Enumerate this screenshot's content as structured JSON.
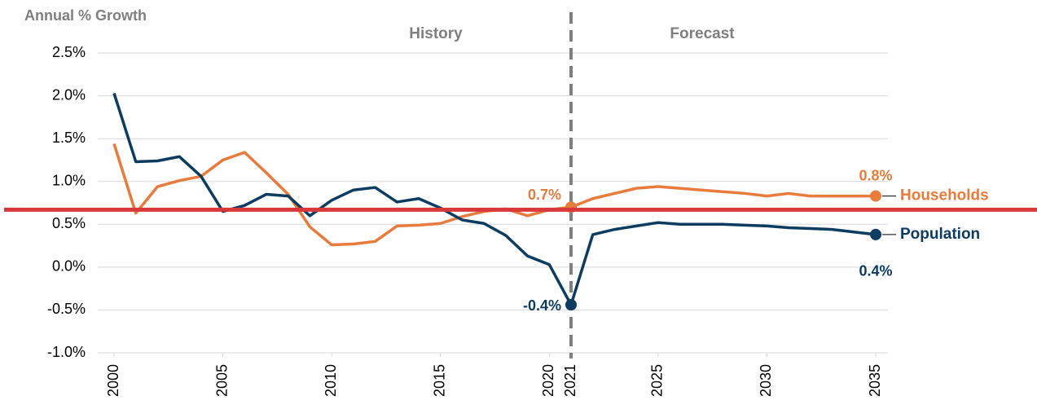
{
  "chart_data": {
    "type": "line",
    "ylabel": "Annual % Growth",
    "annotations": [
      "History",
      "Forecast"
    ],
    "x": [
      2000,
      2001,
      2002,
      2003,
      2004,
      2005,
      2006,
      2007,
      2008,
      2009,
      2010,
      2011,
      2012,
      2013,
      2014,
      2015,
      2016,
      2017,
      2018,
      2019,
      2020,
      2021,
      2022,
      2023,
      2024,
      2025,
      2026,
      2027,
      2028,
      2029,
      2030,
      2031,
      2032,
      2033,
      2034,
      2035
    ],
    "xlim": [
      2000,
      2035
    ],
    "xticks": [
      2000,
      2005,
      2010,
      2015,
      2020,
      2021,
      2025,
      2030,
      2035
    ],
    "ylim": [
      -1.0,
      2.5
    ],
    "yticks": [
      {
        "value": -1.0,
        "label": "-1.0%"
      },
      {
        "value": -0.5,
        "label": "-0.5%"
      },
      {
        "value": 0.0,
        "label": "0.0%"
      },
      {
        "value": 0.5,
        "label": "0.5%"
      },
      {
        "value": 1.0,
        "label": "1.0%"
      },
      {
        "value": 1.5,
        "label": "1.5%"
      },
      {
        "value": 2.0,
        "label": "2.0%"
      },
      {
        "value": 2.5,
        "label": "2.5%"
      }
    ],
    "grid": true,
    "forecast_start": 2021,
    "hline": {
      "value": 0.67,
      "color": "#d9383a"
    },
    "series": [
      {
        "name": "Households",
        "color": "#e97b3c",
        "values": [
          1.44,
          0.63,
          0.94,
          1.01,
          1.06,
          1.25,
          1.34,
          1.1,
          0.85,
          0.47,
          0.26,
          0.27,
          0.3,
          0.48,
          0.49,
          0.51,
          0.59,
          0.65,
          0.68,
          0.6,
          0.67,
          0.7,
          0.8,
          0.86,
          0.92,
          0.94,
          0.92,
          0.9,
          0.88,
          0.86,
          0.83,
          0.86,
          0.83,
          0.83,
          0.83,
          0.83
        ],
        "value_labels": [
          null,
          null,
          null,
          null,
          null,
          null,
          null,
          null,
          null,
          null,
          null,
          null,
          null,
          null,
          null,
          null,
          null,
          null,
          null,
          null,
          null,
          "0.7%",
          null,
          null,
          null,
          null,
          null,
          null,
          null,
          null,
          null,
          null,
          null,
          null,
          null,
          "0.8%"
        ]
      },
      {
        "name": "Population",
        "color": "#0d3c61",
        "values": [
          2.03,
          1.23,
          1.24,
          1.29,
          1.06,
          0.65,
          0.72,
          0.85,
          0.83,
          0.6,
          0.78,
          0.9,
          0.93,
          0.76,
          0.8,
          0.69,
          0.55,
          0.51,
          0.37,
          0.13,
          0.03,
          -0.44,
          0.38,
          0.44,
          0.48,
          0.52,
          0.5,
          0.5,
          0.5,
          0.49,
          0.48,
          0.46,
          0.45,
          0.44,
          0.41,
          0.38
        ],
        "value_labels": [
          null,
          null,
          null,
          null,
          null,
          null,
          null,
          null,
          null,
          null,
          null,
          null,
          null,
          null,
          null,
          null,
          null,
          null,
          null,
          null,
          null,
          "-0.4%",
          null,
          null,
          null,
          null,
          null,
          null,
          null,
          null,
          null,
          null,
          null,
          null,
          null,
          "0.4%"
        ]
      }
    ]
  }
}
